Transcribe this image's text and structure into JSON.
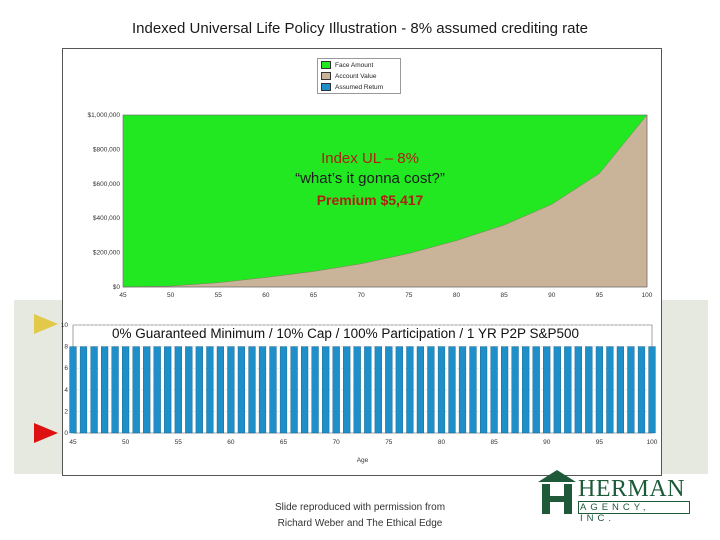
{
  "slide_title": "Indexed Universal Life Policy Illustration - 8% assumed crediting rate",
  "overlays": {
    "line1": "Index UL – 8%",
    "line2": "“what’s it gonna cost?”",
    "line3": "Premium $5,417",
    "lower_banner": "0% Guaranteed Minimum / 10% Cap / 100% Participation / 1 YR P2P S&P500"
  },
  "legend": [
    {
      "label": "Face Amount",
      "color": "#22e822"
    },
    {
      "label": "Account Value",
      "color": "#c9b49a"
    },
    {
      "label": "Assumed Return",
      "color": "#1f8fc9"
    }
  ],
  "caption": {
    "line1": "Slide reproduced with permission from",
    "line2": "Richard Weber and The Ethical Edge"
  },
  "logo": {
    "name": "HERMAN",
    "sub": "AGENCY, INC."
  },
  "colors": {
    "face": "#22e822",
    "account": "#c9b49a",
    "bars": "#1f8fc9",
    "red_arrow": "#dd1111",
    "yellow_arrow": "#e2c94a"
  },
  "chart_data": [
    {
      "type": "area",
      "x_ticks": [
        "45",
        "50",
        "55",
        "60",
        "65",
        "70",
        "75",
        "80",
        "85",
        "90",
        "95",
        "100"
      ],
      "y_ticks": [
        "$0",
        "$200,000",
        "$400,000",
        "$600,000",
        "$800,000",
        "$1,000,000"
      ],
      "ylim": [
        0,
        1000000
      ],
      "xlim": [
        45,
        100
      ],
      "series": [
        {
          "name": "Face Amount",
          "x": [
            45,
            100
          ],
          "values": [
            1000000,
            1000000
          ]
        },
        {
          "name": "Account Value",
          "x": [
            45,
            50,
            55,
            60,
            65,
            70,
            75,
            80,
            85,
            90,
            95,
            100
          ],
          "values": [
            0,
            5000,
            25000,
            55000,
            90000,
            135000,
            195000,
            270000,
            360000,
            480000,
            660000,
            1000000
          ]
        }
      ]
    },
    {
      "type": "bar",
      "x_ticks": [
        "45",
        "50",
        "55",
        "60",
        "65",
        "70",
        "75",
        "80",
        "85",
        "90",
        "95",
        "100"
      ],
      "y_ticks": [
        "0",
        "2",
        "4",
        "6",
        "8",
        "10"
      ],
      "ylim": [
        0,
        10
      ],
      "xlabel": "Age",
      "series": [
        {
          "name": "Assumed Return",
          "x_start": 45,
          "x_end": 100,
          "value": 8
        }
      ]
    }
  ]
}
